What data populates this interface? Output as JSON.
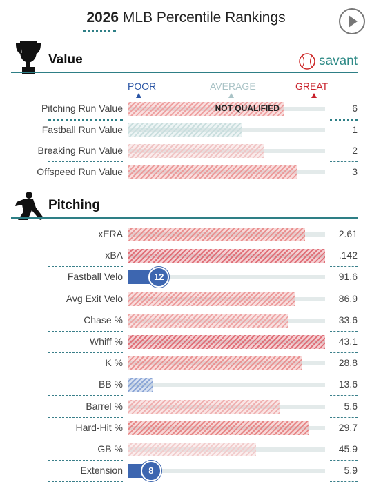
{
  "header": {
    "year": "2026",
    "title": "MLB Percentile Rankings"
  },
  "logo": "savant",
  "scale": {
    "poor": "POOR",
    "average": "AVERAGE",
    "great": "GREAT"
  },
  "sections": [
    {
      "title": "Value",
      "rows": [
        {
          "label": "Pitching Run Value",
          "percentile": 79,
          "value": "6",
          "color": "#eea0a0",
          "note": "NOT QUALIFIED"
        },
        {
          "label": "Fastball Run Value",
          "percentile": 58,
          "value": "1",
          "color": "#c9dede"
        },
        {
          "label": "Breaking Run Value",
          "percentile": 69,
          "value": "2",
          "color": "#f0c4c4"
        },
        {
          "label": "Offspeed Run Value",
          "percentile": 86,
          "value": "3",
          "color": "#ec9a9a"
        }
      ]
    },
    {
      "title": "Pitching",
      "rows": [
        {
          "label": "xERA",
          "percentile": 90,
          "value": "2.61",
          "color": "#e98e8e"
        },
        {
          "label": "xBA",
          "percentile": 100,
          "value": ".142",
          "color": "#e06f78"
        },
        {
          "label": "Fastball Velo",
          "percentile": 12,
          "value": "91.6",
          "color": "#3d66b0",
          "qualified": true
        },
        {
          "label": "Avg Exit Velo",
          "percentile": 85,
          "value": "86.9",
          "color": "#ec9a9a"
        },
        {
          "label": "Chase %",
          "percentile": 81,
          "value": "33.6",
          "color": "#eea5a5"
        },
        {
          "label": "Whiff %",
          "percentile": 100,
          "value": "43.1",
          "color": "#e06f78"
        },
        {
          "label": "K %",
          "percentile": 88,
          "value": "28.8",
          "color": "#ea9292"
        },
        {
          "label": "BB %",
          "percentile": 13,
          "value": "13.6",
          "color": "#8aa5d6"
        },
        {
          "label": "Barrel %",
          "percentile": 77,
          "value": "5.6",
          "color": "#efb0b0"
        },
        {
          "label": "Hard-Hit %",
          "percentile": 92,
          "value": "29.7",
          "color": "#e78686"
        },
        {
          "label": "GB %",
          "percentile": 65,
          "value": "45.9",
          "color": "#f2cccc"
        },
        {
          "label": "Extension",
          "percentile": 8,
          "value": "5.9",
          "color": "#3d66b0",
          "qualified": true
        }
      ]
    }
  ]
}
